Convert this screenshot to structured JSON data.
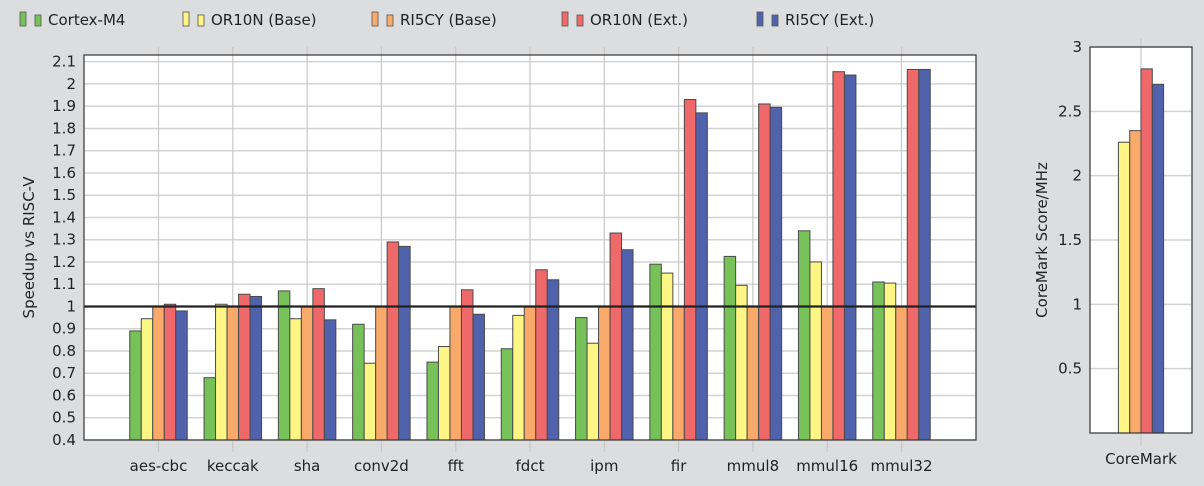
{
  "colors": {
    "Cortex-M4": "#77c159",
    "OR10N (Base)": "#fdf584",
    "RI5CY (Base)": "#f9a969",
    "OR10N (Ext.)": "#ef696b",
    "RI5CY (Ext.)": "#4f62ab"
  },
  "chart_data": [
    {
      "type": "bar",
      "ylabel": "Speedup vs RISC-V",
      "xlabel": "",
      "ylim": [
        0.4,
        2.13
      ],
      "yticks": [
        "0.4",
        "0.5",
        "0.6",
        "0.7",
        "0.8",
        "0.9",
        "1",
        "1.1",
        "1.2",
        "1.3",
        "1.4",
        "1.5",
        "1.6",
        "1.7",
        "1.8",
        "1.9",
        "2",
        "2.1"
      ],
      "grid": true,
      "reference_line": 1.0,
      "legend": "top",
      "categories": [
        "aes-cbc",
        "keccak",
        "sha",
        "conv2d",
        "fft",
        "fdct",
        "ipm",
        "fir",
        "mmul8",
        "mmul16",
        "mmul32"
      ],
      "series": [
        {
          "name": "Cortex-M4",
          "values": [
            0.89,
            0.68,
            1.07,
            0.92,
            0.75,
            0.81,
            0.95,
            1.19,
            1.225,
            1.34,
            1.11
          ]
        },
        {
          "name": "OR10N (Base)",
          "values": [
            0.945,
            1.01,
            0.945,
            0.745,
            0.82,
            0.96,
            0.835,
            1.15,
            1.095,
            1.2,
            1.105
          ]
        },
        {
          "name": "RI5CY (Base)",
          "values": [
            1.0,
            1.0,
            1.0,
            1.0,
            1.0,
            1.0,
            1.0,
            1.0,
            1.0,
            1.0,
            1.0
          ]
        },
        {
          "name": "OR10N (Ext.)",
          "values": [
            1.01,
            1.055,
            1.08,
            1.29,
            1.075,
            1.165,
            1.33,
            1.93,
            1.91,
            2.055,
            2.065
          ]
        },
        {
          "name": "RI5CY (Ext.)",
          "values": [
            0.98,
            1.045,
            0.94,
            1.27,
            0.965,
            1.12,
            1.255,
            1.87,
            1.895,
            2.04,
            2.065
          ]
        }
      ]
    },
    {
      "type": "bar",
      "ylabel": "CoreMark Score/MHz",
      "xlabel": "",
      "ylim": [
        0,
        3
      ],
      "yticks": [
        "0.5",
        "1",
        "1.5",
        "2",
        "2.5",
        "3"
      ],
      "grid": true,
      "categories": [
        "CoreMark"
      ],
      "series": [
        {
          "name": "OR10N (Base)",
          "values": [
            2.26
          ]
        },
        {
          "name": "RI5CY (Base)",
          "values": [
            2.35
          ]
        },
        {
          "name": "OR10N (Ext.)",
          "values": [
            2.83
          ]
        },
        {
          "name": "RI5CY (Ext.)",
          "values": [
            2.71
          ]
        }
      ]
    }
  ]
}
